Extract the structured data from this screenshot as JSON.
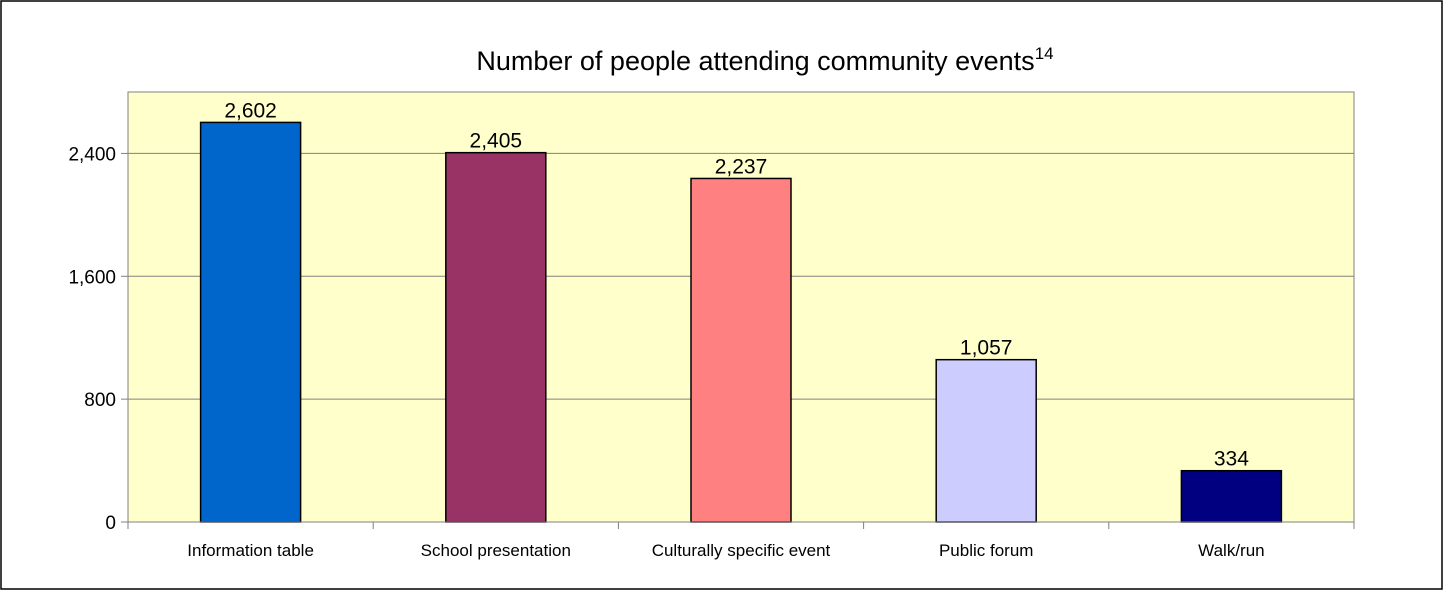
{
  "chart_data": {
    "type": "bar",
    "title": "Number of people attending community events",
    "title_superscript": "14",
    "xlabel": "",
    "ylabel": "",
    "categories": [
      "Information table",
      "School presentation",
      "Culturally specific event",
      "Public forum",
      "Walk/run"
    ],
    "values": [
      2602,
      2405,
      2237,
      1057,
      334
    ],
    "value_labels": [
      "2,602",
      "2,405",
      "2,237",
      "1,057",
      "334"
    ],
    "ylim": [
      0,
      2800
    ],
    "yticks": [
      0,
      800,
      1600,
      2400
    ],
    "ytick_labels": [
      "0",
      "800",
      "1,600",
      "2,400"
    ],
    "grid": true,
    "legend": "none",
    "colors": {
      "plot_background": "#FFFFCC",
      "bars": [
        "#0066CC",
        "#993366",
        "#FF8080",
        "#CCCCFF",
        "#000080"
      ],
      "gridline": "#808080",
      "border": "#000000"
    }
  }
}
